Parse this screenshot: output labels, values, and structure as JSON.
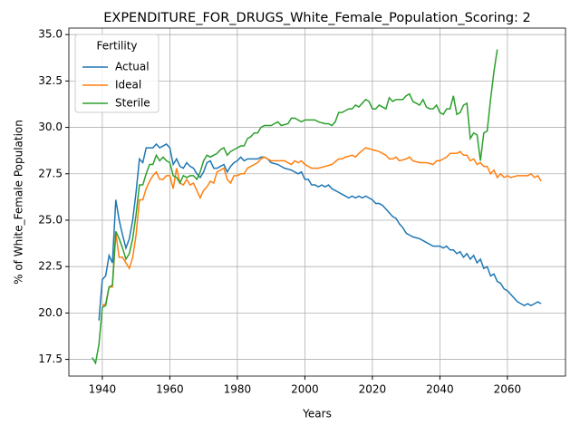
{
  "chart_data": {
    "type": "line",
    "title": "EXPENDITURE_FOR_DRUGS_White_Female_Population_Scoring: 2",
    "xlabel": "Years",
    "ylabel": "% of White_Female Population",
    "legend_title": "Fertility",
    "legend": "upper left",
    "grid": true,
    "xlim": [
      1930.1,
      2077.2
    ],
    "ylim": [
      16.6,
      35.35
    ],
    "xticks": [
      1940,
      1960,
      1980,
      2000,
      2020,
      2040,
      2060
    ],
    "yticks": [
      17.5,
      {
        "value": 20,
        "label": "20.0"
      },
      22.5,
      {
        "value": 25,
        "label": "25.0"
      },
      27.5,
      {
        "value": 30,
        "label": "30.0"
      },
      32.5,
      {
        "value": 35,
        "label": "35.0"
      }
    ],
    "series": [
      {
        "name": "Actual",
        "color": "#1f77b4",
        "x": [
          1939,
          1940,
          1941,
          1942,
          1943,
          1944,
          1945,
          1946,
          1947,
          1948,
          1949,
          1950,
          1951,
          1952,
          1953,
          1954,
          1955,
          1956,
          1957,
          1958,
          1959,
          1960,
          1961,
          1962,
          1963,
          1964,
          1965,
          1966,
          1967,
          1968,
          1969,
          1970,
          1971,
          1972,
          1973,
          1974,
          1975,
          1976,
          1977,
          1978,
          1979,
          1980,
          1981,
          1982,
          1983,
          1984,
          1985,
          1986,
          1987,
          1988,
          1989,
          1990,
          1992,
          1994,
          1996,
          1998,
          1999,
          2000,
          2001,
          2002,
          2003,
          2004,
          2005,
          2006,
          2007,
          2008,
          2009,
          2010,
          2011,
          2012,
          2013,
          2014,
          2015,
          2016,
          2017,
          2018,
          2019,
          2020,
          2021,
          2022,
          2023,
          2024,
          2025,
          2026,
          2027,
          2028,
          2029,
          2030,
          2031,
          2032,
          2034,
          2036,
          2038,
          2040,
          2041,
          2042,
          2043,
          2044,
          2045,
          2046,
          2047,
          2048,
          2049,
          2050,
          2051,
          2052,
          2053,
          2054,
          2055,
          2056,
          2057,
          2058,
          2059,
          2060,
          2061,
          2062,
          2063,
          2064,
          2065,
          2066,
          2067,
          2068,
          2069,
          2070
        ],
        "values": [
          19.6,
          21.8,
          22.0,
          23.1,
          22.7,
          26.1,
          25.0,
          24.2,
          23.5,
          24.0,
          25.0,
          26.5,
          28.3,
          28.1,
          28.9,
          28.9,
          28.9,
          29.1,
          28.9,
          29.0,
          29.1,
          28.9,
          28.0,
          28.3,
          27.9,
          27.8,
          28.1,
          27.9,
          27.8,
          27.5,
          27.3,
          27.6,
          28.1,
          28.2,
          27.8,
          27.8,
          27.9,
          28.0,
          27.6,
          27.9,
          28.1,
          28.2,
          28.4,
          28.2,
          28.3,
          28.3,
          28.3,
          28.3,
          28.4,
          28.4,
          28.3,
          28.1,
          28.0,
          27.8,
          27.7,
          27.5,
          27.6,
          27.2,
          27.2,
          26.9,
          26.9,
          26.8,
          26.9,
          26.8,
          26.9,
          26.7,
          26.6,
          26.5,
          26.4,
          26.3,
          26.2,
          26.3,
          26.2,
          26.3,
          26.2,
          26.3,
          26.2,
          26.1,
          25.9,
          25.9,
          25.8,
          25.6,
          25.4,
          25.2,
          25.1,
          24.8,
          24.6,
          24.3,
          24.2,
          24.1,
          24.0,
          23.8,
          23.6,
          23.6,
          23.5,
          23.6,
          23.4,
          23.4,
          23.2,
          23.3,
          23.0,
          23.2,
          22.9,
          23.1,
          22.7,
          22.9,
          22.4,
          22.5,
          22.0,
          22.1,
          21.7,
          21.6,
          21.3,
          21.2,
          21.0,
          20.8,
          20.6,
          20.5,
          20.4,
          20.5,
          20.4,
          20.5,
          20.6,
          20.5
        ]
      },
      {
        "name": "Ideal",
        "color": "#ff7f0e",
        "x": [
          1940,
          1941,
          1942,
          1943,
          1944,
          1945,
          1946,
          1947,
          1948,
          1949,
          1950,
          1951,
          1952,
          1953,
          1954,
          1955,
          1956,
          1957,
          1958,
          1959,
          1960,
          1961,
          1962,
          1963,
          1964,
          1965,
          1966,
          1967,
          1968,
          1969,
          1970,
          1971,
          1972,
          1973,
          1974,
          1975,
          1976,
          1977,
          1978,
          1979,
          1980,
          1981,
          1982,
          1983,
          1984,
          1985,
          1986,
          1987,
          1988,
          1989,
          1990,
          1992,
          1994,
          1996,
          1997,
          1998,
          1999,
          2000,
          2002,
          2004,
          2006,
          2008,
          2010,
          2011,
          2012,
          2014,
          2015,
          2016,
          2018,
          2020,
          2022,
          2024,
          2025,
          2026,
          2027,
          2028,
          2030,
          2031,
          2032,
          2034,
          2036,
          2038,
          2039,
          2040,
          2042,
          2043,
          2045,
          2046,
          2047,
          2048,
          2049,
          2050,
          2051,
          2052,
          2053,
          2054,
          2055,
          2056,
          2057,
          2058,
          2059,
          2060,
          2061,
          2063,
          2065,
          2066,
          2067,
          2068,
          2069,
          2070
        ],
        "values": [
          20.4,
          20.5,
          21.4,
          21.4,
          24.3,
          23.0,
          23.0,
          22.7,
          22.4,
          23.0,
          24.2,
          26.1,
          26.1,
          26.7,
          27.1,
          27.4,
          27.6,
          27.2,
          27.2,
          27.4,
          27.4,
          26.7,
          27.8,
          27.0,
          26.9,
          27.2,
          26.9,
          27.0,
          26.6,
          26.2,
          26.6,
          26.8,
          27.1,
          27.0,
          27.6,
          27.7,
          27.8,
          27.2,
          27.0,
          27.4,
          27.4,
          27.5,
          27.5,
          27.8,
          27.9,
          28.0,
          28.1,
          28.3,
          28.4,
          28.3,
          28.2,
          28.2,
          28.2,
          28.0,
          28.2,
          28.1,
          28.2,
          28.0,
          27.8,
          27.8,
          27.9,
          28.0,
          28.3,
          28.3,
          28.4,
          28.5,
          28.4,
          28.6,
          28.9,
          28.8,
          28.7,
          28.5,
          28.3,
          28.3,
          28.4,
          28.2,
          28.3,
          28.4,
          28.2,
          28.1,
          28.1,
          28.0,
          28.2,
          28.2,
          28.4,
          28.6,
          28.6,
          28.7,
          28.5,
          28.5,
          28.2,
          28.3,
          28.0,
          28.1,
          27.9,
          27.9,
          27.5,
          27.7,
          27.3,
          27.5,
          27.3,
          27.4,
          27.3,
          27.4,
          27.4,
          27.4,
          27.5,
          27.3,
          27.4,
          27.1
        ]
      },
      {
        "name": "Sterile",
        "color": "#2ca02c",
        "x": [
          1937,
          1938,
          1939,
          1940,
          1941,
          1942,
          1943,
          1944,
          1945,
          1946,
          1947,
          1948,
          1949,
          1950,
          1951,
          1952,
          1953,
          1954,
          1955,
          1956,
          1957,
          1958,
          1959,
          1960,
          1961,
          1962,
          1963,
          1964,
          1965,
          1966,
          1967,
          1968,
          1969,
          1970,
          1971,
          1972,
          1973,
          1974,
          1975,
          1976,
          1977,
          1978,
          1979,
          1980,
          1981,
          1982,
          1983,
          1984,
          1985,
          1986,
          1987,
          1988,
          1990,
          1992,
          1993,
          1995,
          1996,
          1997,
          1999,
          2000,
          2002,
          2003,
          2004,
          2006,
          2007,
          2008,
          2009,
          2010,
          2011,
          2012,
          2013,
          2014,
          2015,
          2016,
          2017,
          2018,
          2019,
          2020,
          2021,
          2022,
          2023,
          2024,
          2025,
          2026,
          2027,
          2028,
          2029,
          2030,
          2031,
          2032,
          2033,
          2034,
          2035,
          2036,
          2037,
          2038,
          2039,
          2040,
          2041,
          2042,
          2043,
          2044,
          2045,
          2046,
          2047,
          2048,
          2049,
          2050,
          2051,
          2052,
          2053,
          2054,
          2055,
          2056,
          2057
        ],
        "values": [
          17.6,
          17.3,
          18.3,
          20.3,
          20.4,
          21.4,
          21.5,
          24.4,
          24.0,
          23.5,
          22.9,
          23.2,
          24.0,
          25.3,
          26.9,
          26.9,
          27.5,
          28.0,
          28.0,
          28.5,
          28.2,
          28.4,
          28.2,
          28.1,
          27.4,
          27.3,
          27.0,
          27.4,
          27.3,
          27.4,
          27.4,
          27.2,
          27.6,
          28.2,
          28.5,
          28.4,
          28.5,
          28.6,
          28.8,
          28.9,
          28.5,
          28.7,
          28.8,
          28.9,
          29.0,
          29.0,
          29.4,
          29.5,
          29.7,
          29.7,
          30.0,
          30.1,
          30.1,
          30.3,
          30.1,
          30.2,
          30.5,
          30.5,
          30.3,
          30.4,
          30.4,
          30.4,
          30.3,
          30.2,
          30.2,
          30.1,
          30.3,
          30.8,
          30.8,
          30.9,
          31.0,
          31.0,
          31.2,
          31.1,
          31.3,
          31.5,
          31.4,
          31.0,
          31.0,
          31.2,
          31.1,
          31.0,
          31.6,
          31.4,
          31.5,
          31.5,
          31.5,
          31.7,
          31.8,
          31.4,
          31.3,
          31.2,
          31.5,
          31.1,
          31.0,
          31.0,
          31.2,
          30.8,
          30.7,
          31.0,
          31.0,
          31.7,
          30.7,
          30.8,
          31.2,
          31.3,
          29.4,
          29.7,
          29.6,
          28.2,
          29.7,
          29.8,
          31.5,
          33.0,
          34.2
        ]
      }
    ]
  }
}
